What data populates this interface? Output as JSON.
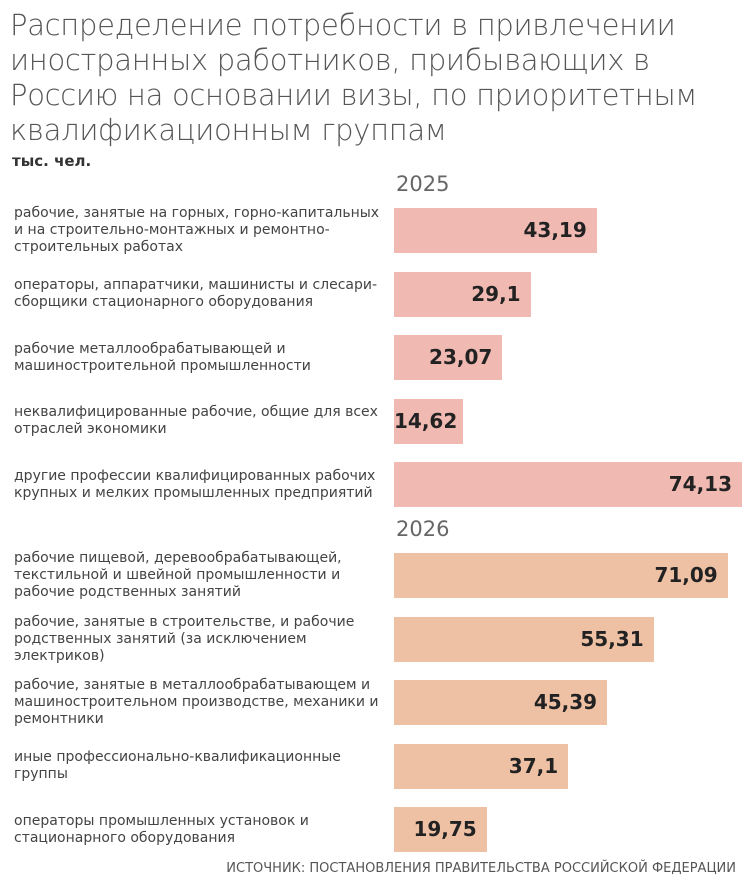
{
  "chart_data": {
    "type": "bar",
    "orientation": "horizontal",
    "title": "Распределение потребности в привлечении иностранных работников, прибывающих в Россию на основании визы, по приоритетным квалификационным группам",
    "unit": "тыс. чел.",
    "source": "ИСТОЧНИК: ПОСТАНОВЛЕНИЯ ПРАВИТЕЛЬСТВА РОССИЙСКОЙ ФЕДЕРАЦИИ",
    "xlim": [
      0,
      74.13
    ],
    "groups": [
      {
        "name": "2025",
        "color": "#f0b9b1",
        "categories": [
          "рабочие, занятые на горных, горно-капитальных и на строительно-монтажных и ремонтно-строительных работах",
          "операторы, аппаратчики, машинисты и слесари-сборщики стационарного оборудования",
          "рабочие металлообрабатывающей и машиностроительной промышленности",
          "неквалифицированные рабочие, общие для всех отраслей экономики",
          "другие профессии квалифицированных рабочих крупных и мелких промышленных предприятий"
        ],
        "values": [
          43.19,
          29.1,
          23.07,
          14.62,
          74.13
        ],
        "value_labels": [
          "43,19",
          "29,1",
          "23,07",
          "14,62",
          "74,13"
        ]
      },
      {
        "name": "2026",
        "color": "#efc1a4",
        "categories": [
          "рабочие пищевой, деревообрабатывающей, текстильной и швейной промышленности и рабочие родственных занятий",
          "рабочие, занятые в строительстве, и рабочие родственных занятий (за исключением электриков)",
          "рабочие, занятые в металлообрабатывающем и машиностроительном производстве, механики и ремонтники",
          "иные профессионально-квалификационные группы",
          "операторы промышленных установок и стационарного оборудования"
        ],
        "values": [
          71.09,
          55.31,
          45.39,
          37.1,
          19.75
        ],
        "value_labels": [
          "71,09",
          "55,31",
          "45,39",
          "37,1",
          "19,75"
        ]
      }
    ]
  }
}
